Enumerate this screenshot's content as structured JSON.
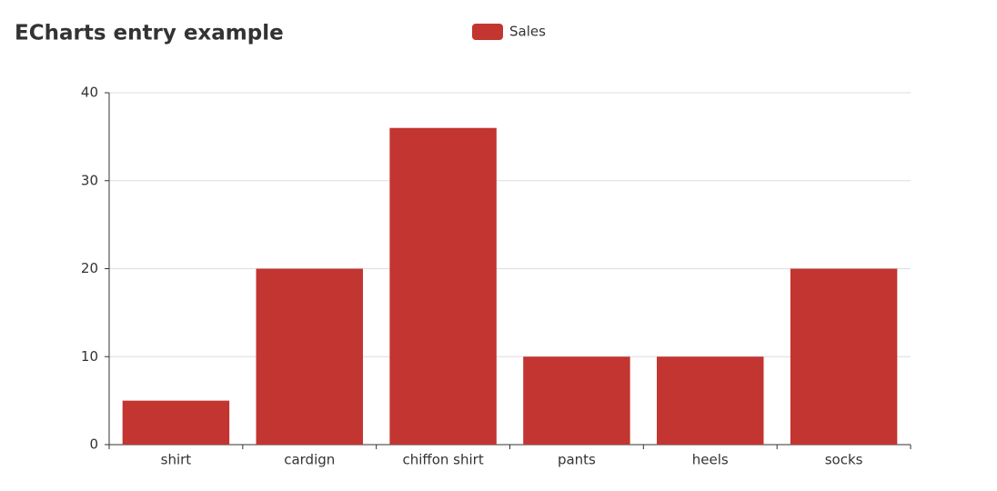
{
  "chart_data": {
    "type": "bar",
    "title": "ECharts entry example",
    "categories": [
      "shirt",
      "cardign",
      "chiffon shirt",
      "pants",
      "heels",
      "socks"
    ],
    "series": [
      {
        "name": "Sales",
        "color": "#c23531",
        "values": [
          5,
          20,
          36,
          10,
          10,
          20
        ]
      }
    ],
    "ylim": [
      0,
      40
    ],
    "yticks": [
      0,
      10,
      20,
      30,
      40
    ],
    "grid": true,
    "legend": "top"
  }
}
